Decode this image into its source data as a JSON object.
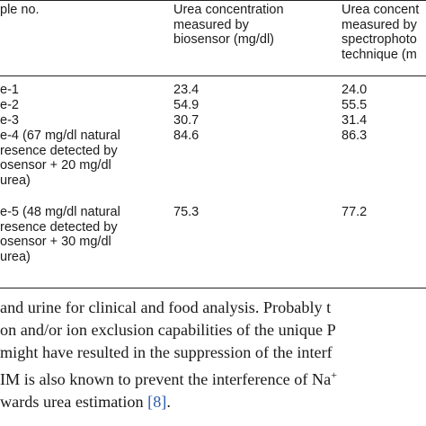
{
  "table": {
    "header": {
      "col1": [
        "ple no."
      ],
      "col2": [
        "Urea concentration",
        "measured by",
        "biosensor (mg/dl)"
      ],
      "col3": [
        "Urea concent",
        "measured by",
        "spectrophoto",
        "technique (m"
      ]
    },
    "rows": [
      {
        "sample": [
          "e-1"
        ],
        "biosensor": "23.4",
        "spectro": "24.0"
      },
      {
        "sample": [
          "e-2"
        ],
        "biosensor": "54.9",
        "spectro": "55.5"
      },
      {
        "sample": [
          "e-3"
        ],
        "biosensor": "30.7",
        "spectro": "31.4"
      },
      {
        "sample": [
          "e-4 (67 mg/dl natural",
          "resence detected by",
          "osensor + 20 mg/dl",
          "urea)"
        ],
        "biosensor": "84.6",
        "spectro": "86.3"
      },
      {
        "sample": [
          "e-5 (48 mg/dl natural",
          "resence detected by",
          "osensor + 30 mg/dl",
          "urea)"
        ],
        "biosensor": "75.3",
        "spectro": "77.2"
      }
    ]
  },
  "paragraph": {
    "lines": [
      "and urine for clinical and food analysis. Probably t",
      "on and/or ion exclusion capabilities of the unique P",
      "might have resulted in the suppression of the interf",
      "IM is also known to prevent the interference of Na",
      "wards urea estimation "
    ],
    "superscript": "+",
    "citation": "[8]",
    "end": "."
  }
}
